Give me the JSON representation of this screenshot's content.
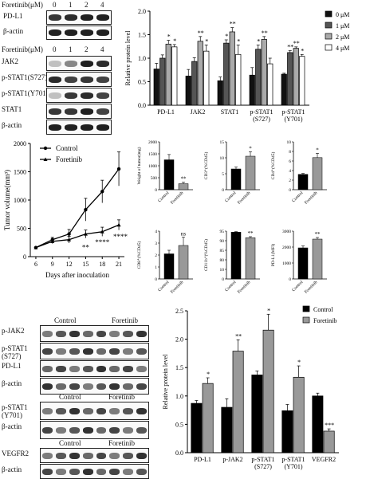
{
  "blotA": {
    "header": "Foretinib(μM)",
    "lanes": [
      "0",
      "1",
      "2",
      "4"
    ],
    "rows": [
      "PD-L1",
      "β-actin"
    ],
    "intensity": [
      [
        0.85,
        0.9,
        0.95,
        0.95
      ],
      [
        0.95,
        0.95,
        0.95,
        0.95
      ]
    ]
  },
  "blotB": {
    "header": "Foretinib(μM)",
    "lanes": [
      "0",
      "1",
      "2",
      "4"
    ],
    "rows": [
      "JAK2",
      "p-STAT1(S727)",
      "p-STAT1(Y701)",
      "STAT1",
      "β-actin"
    ],
    "intensity": [
      [
        0.25,
        0.5,
        0.95,
        0.9
      ],
      [
        0.9,
        0.8,
        0.85,
        0.8
      ],
      [
        0.25,
        0.85,
        0.9,
        0.8
      ],
      [
        0.85,
        0.85,
        0.95,
        0.8
      ],
      [
        0.95,
        0.95,
        0.95,
        0.95
      ]
    ]
  },
  "blotC": {
    "group_labels": [
      "Control",
      "Foretinib"
    ],
    "rows": [
      "p-JAK2",
      "p-STAT1\n(S727)",
      "PD-L1",
      "β-actin"
    ]
  },
  "blotD": {
    "group_labels": [
      "Control",
      "Foretinib"
    ],
    "rows": [
      "p-STAT1\n(Y701)",
      "β-actin"
    ]
  },
  "blotE": {
    "group_labels": [
      "Control",
      "Foretinib"
    ],
    "rows": [
      "VEGFR2",
      "β-actin"
    ]
  },
  "chart_data": [
    {
      "id": "top-bar",
      "type": "bar",
      "ylabel": "Relative protein level",
      "ylim": [
        0,
        2.0
      ],
      "yticks": [
        "0.0",
        "0.5",
        "1.0",
        "1.5",
        "2.0"
      ],
      "categories": [
        "PD-L1",
        "JAK2",
        "STAT1",
        "p-STAT1\n(S727)",
        "p-STAT1\n(Y701)"
      ],
      "series": [
        {
          "name": "0 μM",
          "color": "#111111",
          "values": [
            0.77,
            0.62,
            0.52,
            0.64,
            0.66
          ],
          "err": [
            0.12,
            0.14,
            0.08,
            0.16,
            0.02
          ]
        },
        {
          "name": "1 μM",
          "color": "#555555",
          "values": [
            1.0,
            0.93,
            1.32,
            1.19,
            1.12
          ],
          "err": [
            0.07,
            0.08,
            0.07,
            0.09,
            0.04
          ]
        },
        {
          "name": "2 μM",
          "color": "#aaaaaa",
          "values": [
            1.3,
            1.36,
            1.56,
            1.4,
            1.21
          ],
          "err": [
            0.08,
            0.1,
            0.09,
            0.06,
            0.03
          ]
        },
        {
          "name": "4 μM",
          "color": "#ffffff",
          "values": [
            1.24,
            1.15,
            1.08,
            0.88,
            1.04
          ],
          "err": [
            0.05,
            0.13,
            0.2,
            0.12,
            0.04
          ]
        }
      ],
      "stars": [
        [
          "",
          "",
          "*",
          "*"
        ],
        [
          "",
          "",
          "**",
          "*"
        ],
        [
          "",
          "*",
          "**",
          "*"
        ],
        [
          "",
          "*",
          "**",
          ""
        ],
        [
          "",
          "**",
          "**",
          "*"
        ]
      ]
    },
    {
      "id": "tumor-volume",
      "type": "line",
      "xlabel": "Days after inoculation",
      "ylabel": "Tumor volume(mm³)",
      "ylim": [
        0,
        2000
      ],
      "yticks": [
        "0",
        "500",
        "1000",
        "1500",
        "2000"
      ],
      "x": [
        6,
        9,
        12,
        15,
        18,
        21
      ],
      "series": [
        {
          "name": "Control",
          "values": [
            160,
            300,
            400,
            830,
            1150,
            1550
          ],
          "err": [
            10,
            40,
            80,
            200,
            200,
            300
          ]
        },
        {
          "name": "Foretinib",
          "values": [
            160,
            270,
            300,
            400,
            440,
            560
          ],
          "err": [
            10,
            40,
            60,
            70,
            80,
            90
          ]
        }
      ],
      "annotations": [
        "**",
        "****",
        "****"
      ]
    },
    {
      "id": "weight",
      "type": "bar",
      "ylabel": "Weight of tumor(mg)",
      "categories": [
        "Control",
        "Foretinib"
      ],
      "values": [
        1250,
        250
      ],
      "err": [
        220,
        60
      ],
      "ylim": [
        0,
        2000
      ],
      "yticks": [
        "0",
        "500",
        "1000",
        "1500",
        "2000"
      ],
      "sig": "**"
    },
    {
      "id": "cd3",
      "type": "bar",
      "ylabel": "CD3⁺(%CD45)",
      "categories": [
        "Control",
        "Foretinib"
      ],
      "values": [
        6.5,
        10.5
      ],
      "err": [
        0.6,
        1.4
      ],
      "ylim": [
        0,
        15
      ],
      "yticks": [
        "0",
        "5",
        "10",
        "15"
      ],
      "sig": "*"
    },
    {
      "id": "cd4",
      "type": "bar",
      "ylabel": "CD4⁺(%CD45)",
      "categories": [
        "Control",
        "Foretinib"
      ],
      "values": [
        3.2,
        6.7
      ],
      "err": [
        0.2,
        0.9
      ],
      "ylim": [
        0,
        10
      ],
      "yticks": [
        "0",
        "2",
        "4",
        "6",
        "8",
        "10"
      ],
      "sig": "*"
    },
    {
      "id": "cd8",
      "type": "bar",
      "ylabel": "CD8⁺(%CD45)",
      "categories": [
        "Control",
        "Foretinib"
      ],
      "values": [
        2.1,
        2.8
      ],
      "err": [
        0.3,
        0.7
      ],
      "ylim": [
        0,
        4
      ],
      "yticks": [
        "0",
        "1",
        "2",
        "3",
        "4"
      ],
      "sig": "ns"
    },
    {
      "id": "cd11b",
      "type": "bar",
      "ylabel": "CD11b⁺(%CD45)",
      "categories": [
        "Control",
        "Foretinib"
      ],
      "values": [
        93,
        82
      ],
      "err": [
        1,
        2
      ],
      "ylim": [
        0,
        95
      ],
      "yticks": [
        "0",
        "10",
        "80",
        "85",
        "90",
        "95"
      ],
      "sig": "**"
    },
    {
      "id": "pdl1-mfi",
      "type": "bar",
      "ylabel": "PD-L1(MFI)",
      "categories": [
        "Control",
        "Foretinib"
      ],
      "values": [
        1950,
        2500
      ],
      "err": [
        120,
        100
      ],
      "ylim": [
        0,
        3000
      ],
      "yticks": [
        "0",
        "1000",
        "2000",
        "3000"
      ],
      "sig": "**"
    },
    {
      "id": "bottom-bar",
      "type": "bar",
      "ylabel": "Relative protein level",
      "ylim": [
        0,
        2.5
      ],
      "yticks": [
        "0.0",
        "0.5",
        "1.0",
        "1.5",
        "2.0",
        "2.5"
      ],
      "categories": [
        "PD-L1",
        "p-JAK2",
        "p-STAT1\n(S727)",
        "p-STAT1\n(Y701)",
        "VEGFR2"
      ],
      "series": [
        {
          "name": "Control",
          "color": "#000000",
          "values": [
            0.87,
            0.8,
            1.37,
            0.74,
            1.0
          ],
          "err": [
            0.05,
            0.15,
            0.07,
            0.11,
            0.05
          ]
        },
        {
          "name": "Foretinib",
          "color": "#999999",
          "values": [
            1.22,
            1.79,
            2.16,
            1.33,
            0.38
          ],
          "err": [
            0.1,
            0.2,
            0.28,
            0.2,
            0.04
          ]
        }
      ],
      "stars": [
        "*",
        "**",
        "*",
        "*",
        "***"
      ]
    }
  ]
}
